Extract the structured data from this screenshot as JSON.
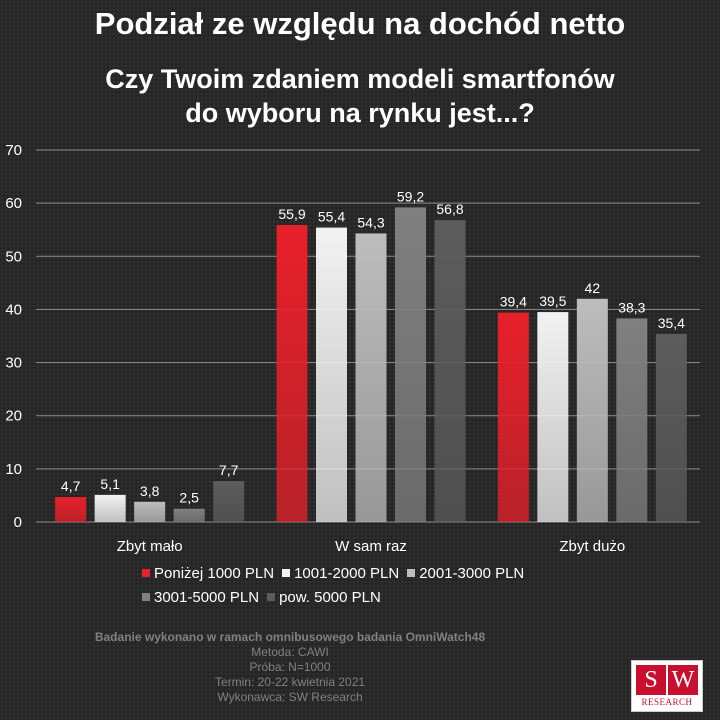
{
  "title": "Podział ze względu na dochód netto",
  "subtitle_line1": "Czy Twoim zdaniem modeli smartfonów",
  "subtitle_line2": "do wyboru na rynku jest...?",
  "chart_data": {
    "type": "bar",
    "title": "Czy Twoim zdaniem modeli smartfonów do wyboru na rynku jest...?",
    "categories": [
      "Zbyt mało",
      "W sam raz",
      "Zbyt dużo"
    ],
    "series": [
      {
        "name": "Poniżej 1000 PLN",
        "values": [
          4.7,
          55.9,
          39.4
        ],
        "labels": [
          "4,7",
          "55,9",
          "39,4"
        ],
        "color": "#e8202a"
      },
      {
        "name": "1001-2000 PLN",
        "values": [
          5.1,
          55.4,
          39.5
        ],
        "labels": [
          "5,1",
          "55,4",
          "39,5"
        ],
        "color": "#f2f2f2"
      },
      {
        "name": "2001-3000 PLN",
        "values": [
          3.8,
          54.3,
          42
        ],
        "labels": [
          "3,8",
          "54,3",
          "42"
        ],
        "color": "#bdbdbd"
      },
      {
        "name": "3001-5000 PLN",
        "values": [
          2.5,
          59.2,
          38.3
        ],
        "labels": [
          "2,5",
          "59,2",
          "38,3"
        ],
        "color": "#808080"
      },
      {
        "name": "pow. 5000 PLN",
        "values": [
          7.7,
          56.8,
          35.4
        ],
        "labels": [
          "7,7",
          "56,8",
          "35,4"
        ],
        "color": "#5c5c5c"
      }
    ],
    "ylim": [
      0,
      70
    ],
    "yticks": [
      "0",
      "10",
      "20",
      "30",
      "40",
      "50",
      "60",
      "70"
    ],
    "grid": true,
    "legend_position": "bottom"
  },
  "footer": {
    "line1": "Badanie wykonano w ramach omnibusowego badania OmniWatch48",
    "line2": "Metoda: CAWI",
    "line3": "Próba: N=1000",
    "line4": "Termin: 20-22 kwietnia 2021",
    "line5": "Wykonawca: SW Research"
  },
  "logo": {
    "letter1": "S",
    "letter2": "W",
    "name": "RESEARCH"
  }
}
